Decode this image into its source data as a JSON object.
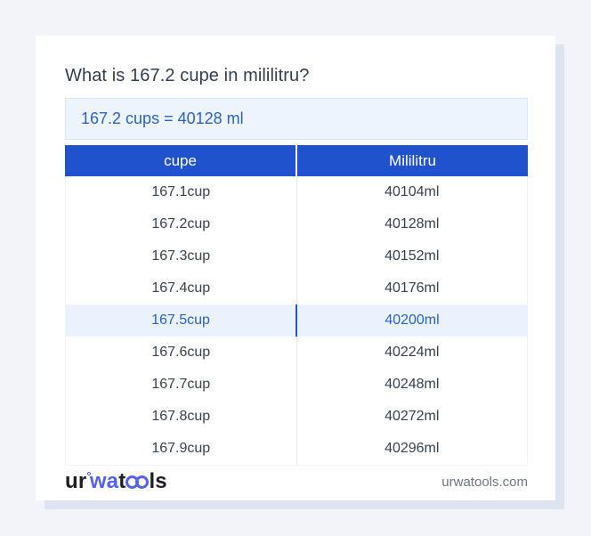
{
  "page": {
    "title": "What is 167.2 cupe in mililitru?",
    "result": "167.2 cups = 40128 ml"
  },
  "table": {
    "headers": [
      "cupe",
      "Mililitru"
    ],
    "highlight_index": 4,
    "rows": [
      {
        "cup": "167.1cup",
        "ml": "40104ml"
      },
      {
        "cup": "167.2cup",
        "ml": "40128ml"
      },
      {
        "cup": "167.3cup",
        "ml": "40152ml"
      },
      {
        "cup": "167.4cup",
        "ml": "40176ml"
      },
      {
        "cup": "167.5cup",
        "ml": "40200ml"
      },
      {
        "cup": "167.6cup",
        "ml": "40224ml"
      },
      {
        "cup": "167.7cup",
        "ml": "40248ml"
      },
      {
        "cup": "167.8cup",
        "ml": "40272ml"
      },
      {
        "cup": "167.9cup",
        "ml": "40296ml"
      }
    ]
  },
  "footer": {
    "logo": {
      "part1": "ur",
      "degree": "°",
      "part2": "wa",
      "part3": "t",
      "rings": "oo",
      "part4": "ls"
    },
    "domain": "urwatools.com"
  },
  "colors": {
    "accent_blue": "#2152cd",
    "link_blue": "#2a61c8",
    "result_bg": "#eef4fe",
    "result_border": "#d9e6f8",
    "highlight_bg": "#e9f2fd",
    "highlight_divider": "#2456c4",
    "page_bg": "#f2f4f9",
    "card_shadow": "#dde3ef",
    "logo_blue": "#5561f1",
    "logo_dark": "#1b1e27",
    "text_dark": "#333d4e",
    "cell_text": "#39414f",
    "muted_text": "#6e7584",
    "divider": "#e4e7ec"
  }
}
